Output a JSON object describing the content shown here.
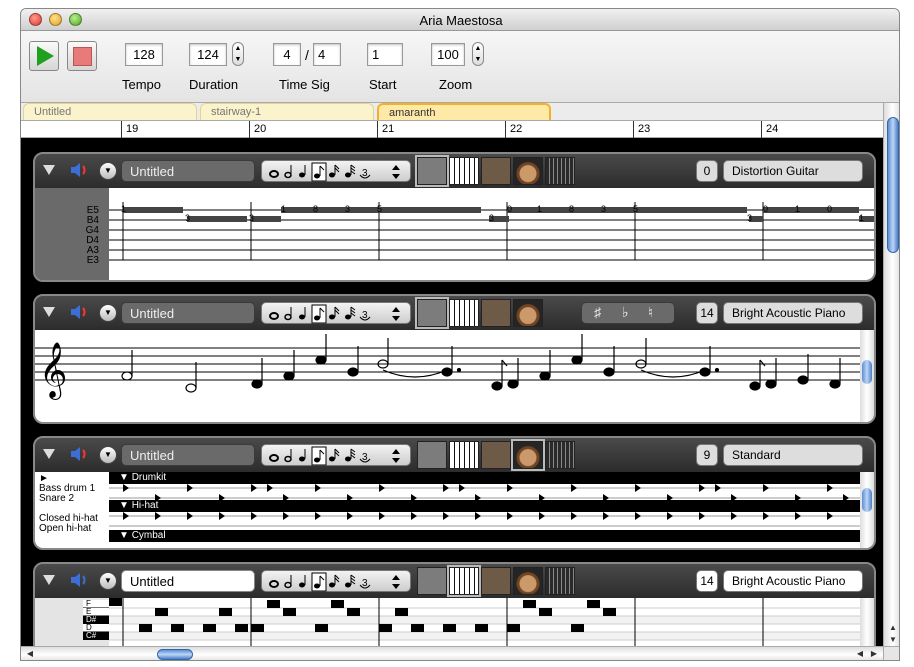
{
  "window": {
    "title": "Aria Maestosa"
  },
  "toolbar": {
    "tempo": "128",
    "tempo_label": "Tempo",
    "duration": "124",
    "duration_label": "Duration",
    "timesig_num": "4",
    "timesig_den": "4",
    "timesig_sep": "/",
    "timesig_label": "Time Sig",
    "start": "1",
    "start_label": "Start",
    "zoom": "100",
    "zoom_label": "Zoom"
  },
  "tabs": [
    {
      "label": "Untitled"
    },
    {
      "label": "stairway-1"
    },
    {
      "label": "amaranth"
    }
  ],
  "ruler": {
    "measures": [
      "19",
      "20",
      "21",
      "22",
      "23",
      "24"
    ]
  },
  "tracks": [
    {
      "name": "Untitled",
      "program": "0",
      "instrument": "Distortion Guitar",
      "strings": [
        "E5",
        "B4",
        "G4",
        "D4",
        "A3",
        "E3"
      ]
    },
    {
      "name": "Untitled",
      "program": "14",
      "instrument": "Bright Acoustic Piano",
      "accidentals": [
        "♯",
        "♭",
        "♮"
      ]
    },
    {
      "name": "Untitled",
      "program": "9",
      "instrument": "Standard",
      "drum_groups": [
        "Drumkit",
        "Hi-hat",
        "Cymbal"
      ],
      "drum_labels": [
        "Bass drum 1",
        "Snare 2",
        "Closed hi-hat",
        "Open hi-hat"
      ]
    },
    {
      "name": "Untitled",
      "program": "14",
      "instrument": "Bright Acoustic Piano",
      "keys": [
        "F",
        "E",
        "D#",
        "D",
        "C#"
      ]
    }
  ],
  "icons": {
    "play": "play-icon",
    "stop": "stop-icon",
    "speaker": "speaker-icon",
    "collapse": "disclosure-triangle-icon",
    "menu": "chevron-down-icon"
  },
  "colors": {
    "play": "#1fa01f",
    "stop": "#e87a7a",
    "active_tab": "#f1b12a",
    "scroll": "#5b8fd4"
  }
}
